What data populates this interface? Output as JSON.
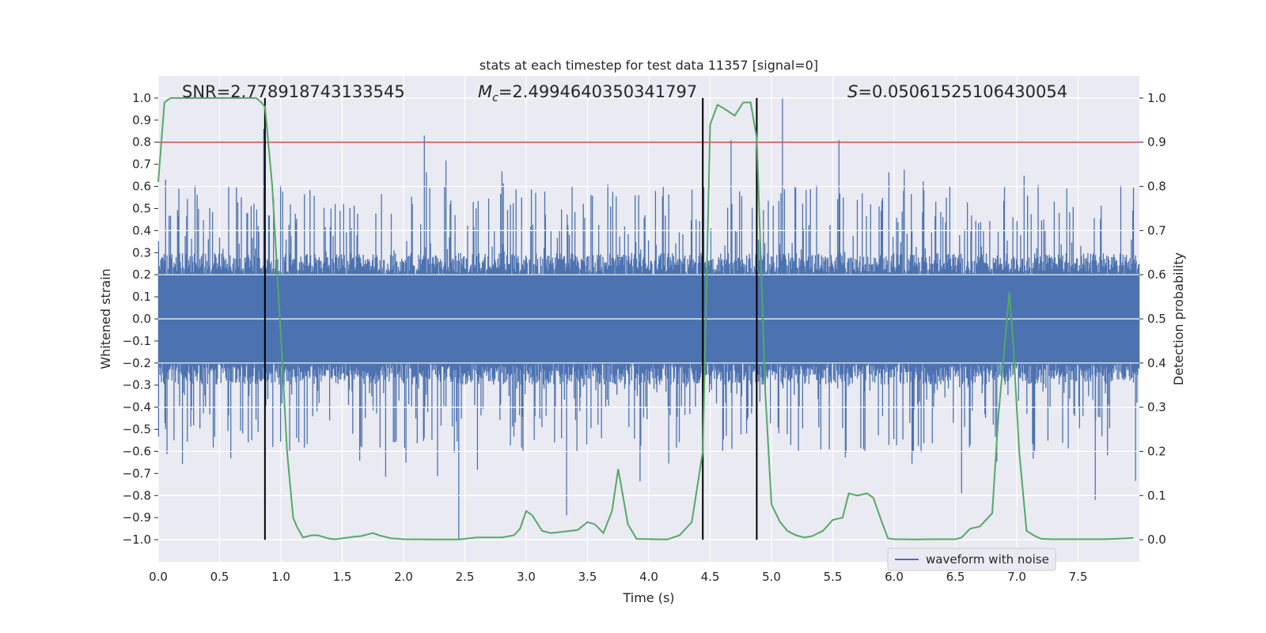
{
  "chart_data": {
    "type": "line",
    "title": "stats at each timestep for test data 11357 [signal=0]",
    "xlabel": "Time (s)",
    "ylabel": "Whitened strain",
    "ylabel_right": "Detection probability",
    "xlim": [
      0,
      8
    ],
    "ylim": [
      -1.1,
      1.1
    ],
    "ylim_right": [
      -0.05,
      1.05
    ],
    "x_ticks": [
      "0.0",
      "0.5",
      "1.0",
      "1.5",
      "2.0",
      "2.5",
      "3.0",
      "3.5",
      "4.0",
      "4.5",
      "5.0",
      "5.5",
      "6.0",
      "6.5",
      "7.0",
      "7.5"
    ],
    "y_ticks": [
      "1.0",
      "0.9",
      "0.8",
      "0.7",
      "0.6",
      "0.5",
      "0.4",
      "0.3",
      "0.2",
      "0.1",
      "0.0",
      "−0.1",
      "−0.2",
      "−0.3",
      "−0.4",
      "−0.5",
      "−0.6",
      "−0.7",
      "−0.8",
      "−0.9",
      "−1.0"
    ],
    "y_right_ticks": [
      "1.0",
      "0.9",
      "0.8",
      "0.7",
      "0.6",
      "0.5",
      "0.4",
      "0.3",
      "0.2",
      "0.1",
      "0.0"
    ],
    "grid": true,
    "legend_position": "lower-right",
    "annotations": {
      "snr": "SNR=2.778918743133545",
      "mc_symbol": "M",
      "mc_sub": "c",
      "mc_value": "=2.4994640350341797",
      "s_symbol": "S",
      "s_value": "=0.05061525106430054"
    },
    "threshold": 0.9,
    "vertical_lines": [
      0.87,
      4.44,
      4.88
    ],
    "series": [
      {
        "name": "waveform with noise",
        "color": "#4c72b0",
        "axis": "left",
        "style": "noise waveform",
        "peaks": [
          {
            "x": 0.86,
            "y": 0.86
          },
          {
            "x": 2.17,
            "y": 0.83
          },
          {
            "x": 4.67,
            "y": 0.81
          },
          {
            "x": 5.09,
            "y": 1.0
          },
          {
            "x": 5.55,
            "y": 0.81
          },
          {
            "x": 2.45,
            "y": -1.0
          },
          {
            "x": 3.33,
            "y": -0.89
          },
          {
            "x": 7.64,
            "y": -0.82
          },
          {
            "x": 6.55,
            "y": -0.79
          }
        ]
      },
      {
        "name": "",
        "color": "#55a868",
        "axis": "right",
        "x": [
          0,
          0.05,
          0.1,
          0.2,
          0.5,
          0.8,
          0.84,
          0.87,
          0.93,
          1.0,
          1.05,
          1.1,
          1.13,
          1.18,
          1.25,
          1.3,
          1.4,
          1.45,
          1.5,
          1.55,
          1.6,
          1.65,
          1.75,
          1.8,
          1.9,
          2.0,
          2.2,
          2.45,
          2.6,
          2.7,
          2.8,
          2.9,
          2.95,
          3.0,
          3.05,
          3.13,
          3.2,
          3.3,
          3.42,
          3.5,
          3.56,
          3.63,
          3.7,
          3.75,
          3.83,
          3.9,
          4.05,
          4.15,
          4.25,
          4.35,
          4.44,
          4.5,
          4.56,
          4.62,
          4.7,
          4.77,
          4.83,
          4.88,
          4.95,
          5.0,
          5.07,
          5.13,
          5.2,
          5.27,
          5.33,
          5.42,
          5.5,
          5.58,
          5.63,
          5.7,
          5.78,
          5.83,
          5.9,
          5.95,
          6.0,
          6.05,
          6.15,
          6.3,
          6.5,
          6.55,
          6.62,
          6.7,
          6.8,
          6.85,
          6.94,
          6.97,
          7.02,
          7.08,
          7.15,
          7.2,
          7.3,
          7.5,
          7.7,
          7.8,
          7.95
        ],
        "values": [
          0.81,
          0.99,
          1.0,
          1.0,
          1.0,
          1.0,
          0.99,
          0.98,
          0.8,
          0.46,
          0.2,
          0.05,
          0.03,
          0.005,
          0.01,
          0.01,
          0.002,
          0.001,
          0.003,
          0.005,
          0.007,
          0.008,
          0.015,
          0.01,
          0.003,
          0.001,
          0.0005,
          0.0005,
          0.005,
          0.005,
          0.005,
          0.01,
          0.025,
          0.065,
          0.055,
          0.02,
          0.015,
          0.018,
          0.022,
          0.04,
          0.035,
          0.015,
          0.065,
          0.16,
          0.035,
          0.002,
          0.001,
          0.0005,
          0.01,
          0.04,
          0.2,
          0.94,
          0.985,
          0.975,
          0.96,
          0.99,
          0.99,
          0.91,
          0.33,
          0.08,
          0.04,
          0.02,
          0.01,
          0.005,
          0.008,
          0.02,
          0.045,
          0.05,
          0.105,
          0.1,
          0.105,
          0.095,
          0.04,
          0.003,
          0.001,
          0.001,
          0.0005,
          0.001,
          0.001,
          0.005,
          0.025,
          0.03,
          0.06,
          0.28,
          0.56,
          0.45,
          0.2,
          0.02,
          0.008,
          0.002,
          0.001,
          0.001,
          0.001,
          0.002,
          0.004
        ]
      }
    ]
  },
  "legend": {
    "label": "waveform with noise"
  }
}
